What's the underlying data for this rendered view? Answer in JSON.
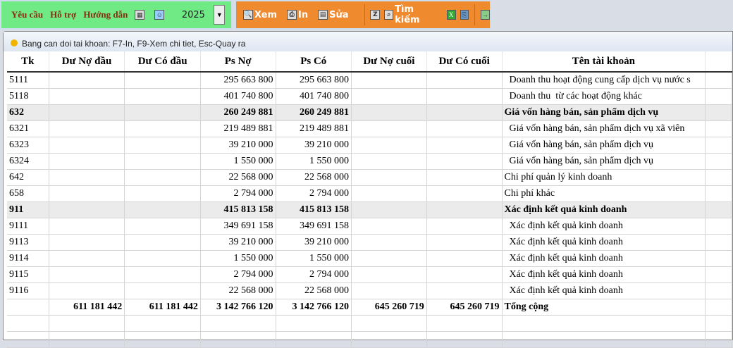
{
  "toolbar": {
    "yeu_cau": "Yêu cầu",
    "ho_tro": "Hỗ trợ",
    "huong_dan": "Hướng dẫn",
    "year": "2025",
    "xem": "Xem",
    "in": "In",
    "sua": "Sửa",
    "tim_kiem": "Tìm kiếm"
  },
  "panel_title": "Bang can doi tai khoan: F7-In, F9-Xem chi tiet, Esc-Quay ra",
  "columns": [
    "Tk",
    "Dư Nợ đầu",
    "Dư Có đầu",
    "Ps Nợ",
    "Ps Có",
    "Dư Nợ cuối",
    "Dư Có cuối",
    "Tên tài khoản",
    ""
  ],
  "rows": [
    {
      "tk": "5111",
      "dnd": "",
      "dcd": "",
      "psn": "295 663 800",
      "psc": "295 663 800",
      "dnc": "",
      "dcc": "",
      "ten": "  Doanh thu hoạt động cung cấp dịch vụ nước s",
      "bold": false
    },
    {
      "tk": "5118",
      "dnd": "",
      "dcd": "",
      "psn": "401 740 800",
      "psc": "401 740 800",
      "dnc": "",
      "dcc": "",
      "ten": "  Doanh thu  từ các hoạt động khác",
      "bold": false
    },
    {
      "tk": "632",
      "dnd": "",
      "dcd": "",
      "psn": "260 249 881",
      "psc": "260 249 881",
      "dnc": "",
      "dcc": "",
      "ten": "Giá vốn hàng bán, sản phẩm dịch vụ",
      "bold": true
    },
    {
      "tk": "6321",
      "dnd": "",
      "dcd": "",
      "psn": "219 489 881",
      "psc": "219 489 881",
      "dnc": "",
      "dcc": "",
      "ten": "  Giá vốn hàng bán, sản phẩm dịch vụ xã viên",
      "bold": false
    },
    {
      "tk": "6323",
      "dnd": "",
      "dcd": "",
      "psn": "39 210 000",
      "psc": "39 210 000",
      "dnc": "",
      "dcc": "",
      "ten": "  Giá vốn hàng bán, sản phẩm dịch vụ",
      "bold": false
    },
    {
      "tk": "6324",
      "dnd": "",
      "dcd": "",
      "psn": "1 550 000",
      "psc": "1 550 000",
      "dnc": "",
      "dcc": "",
      "ten": "  Giá vốn hàng bán, sản phẩm dịch vụ",
      "bold": false
    },
    {
      "tk": "642",
      "dnd": "",
      "dcd": "",
      "psn": "22 568 000",
      "psc": "22 568 000",
      "dnc": "",
      "dcc": "",
      "ten": "Chi phí quản lý kinh doanh",
      "bold": false
    },
    {
      "tk": "658",
      "dnd": "",
      "dcd": "",
      "psn": "2 794 000",
      "psc": "2 794 000",
      "dnc": "",
      "dcc": "",
      "ten": "Chi phí khác",
      "bold": false
    },
    {
      "tk": "911",
      "dnd": "",
      "dcd": "",
      "psn": "415 813 158",
      "psc": "415 813 158",
      "dnc": "",
      "dcc": "",
      "ten": "Xác định kết quả kinh doanh",
      "bold": true
    },
    {
      "tk": "9111",
      "dnd": "",
      "dcd": "",
      "psn": "349 691 158",
      "psc": "349 691 158",
      "dnc": "",
      "dcc": "",
      "ten": "  Xác định kết quả kinh doanh",
      "bold": false
    },
    {
      "tk": "9113",
      "dnd": "",
      "dcd": "",
      "psn": "39 210 000",
      "psc": "39 210 000",
      "dnc": "",
      "dcc": "",
      "ten": "  Xác định kết quả kinh doanh",
      "bold": false
    },
    {
      "tk": "9114",
      "dnd": "",
      "dcd": "",
      "psn": "1 550 000",
      "psc": "1 550 000",
      "dnc": "",
      "dcc": "",
      "ten": "  Xác định kết quả kinh doanh",
      "bold": false
    },
    {
      "tk": "9115",
      "dnd": "",
      "dcd": "",
      "psn": "2 794 000",
      "psc": "2 794 000",
      "dnc": "",
      "dcc": "",
      "ten": "  Xác định kết quả kinh doanh",
      "bold": false
    },
    {
      "tk": "9116",
      "dnd": "",
      "dcd": "",
      "psn": "22 568 000",
      "psc": "22 568 000",
      "dnc": "",
      "dcc": "",
      "ten": "  Xác định kết quả kinh doanh",
      "bold": false
    }
  ],
  "total": {
    "tk": "",
    "dnd": "611 181 442",
    "dcd": "611 181 442",
    "psn": "3 142 766 120",
    "psc": "3 142 766 120",
    "dnc": "645 260 719",
    "dcc": "645 260 719",
    "ten": "Tổng cộng"
  }
}
